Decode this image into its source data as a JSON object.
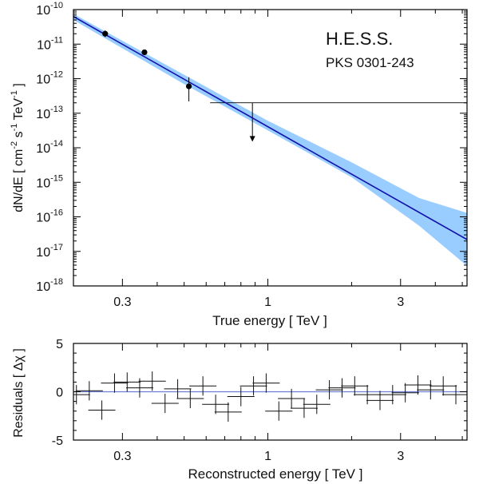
{
  "chart_data": [
    {
      "type": "line",
      "title": "H.E.S.S.",
      "subtitle": "PKS 0301-243",
      "xlabel": "True energy  [ TeV ]",
      "ylabel_main": "dN/dE  [ cm",
      "ylabel_sup1": "-2",
      "ylabel_mid": " s",
      "ylabel_sup2": "-1",
      "ylabel_tev": " TeV",
      "ylabel_sup3": "-1",
      "ylabel_end": " ]",
      "x_scale": "log",
      "y_scale": "log",
      "xlim": [
        0.2,
        5.2
      ],
      "ylim_exp": [
        -18,
        -10
      ],
      "x_ticks": [
        0.3,
        1,
        3
      ],
      "x_tick_labels": [
        "0.3",
        "1",
        "3"
      ],
      "y_tick_exponents": [
        -10,
        -11,
        -12,
        -13,
        -14,
        -15,
        -16,
        -17,
        -18
      ],
      "y_tick_base": "10",
      "fit_line": {
        "x": [
          0.2,
          5.2
        ],
        "y": [
          6.3e-11,
          2.2e-17
        ],
        "color": "#1010aa"
      },
      "confidence_band": {
        "x": [
          0.2,
          0.5,
          1.0,
          2.0,
          3.5,
          5.2
        ],
        "upper": [
          7.5e-11,
          1.3e-12,
          6e-14,
          3.8e-15,
          3.5e-16,
          1.3e-16
        ],
        "lower": [
          5e-11,
          7e-13,
          3.2e-14,
          1.4e-15,
          5.5e-17,
          3.8e-18
        ],
        "color": "#99ccff"
      },
      "points": [
        {
          "x": 0.26,
          "y": 2e-11,
          "yerr_lo": 1.6e-11,
          "yerr_hi": 2.5e-11
        },
        {
          "x": 0.36,
          "y": 5.8e-12,
          "yerr_lo": 5e-12,
          "yerr_hi": 6.8e-12
        },
        {
          "x": 0.52,
          "y": 6e-13,
          "yerr_lo": 2.2e-13,
          "yerr_hi": 1.1e-12
        }
      ],
      "upper_limit": {
        "x_lo": 0.62,
        "x_hi": 5.2,
        "x": 0.88,
        "y": 2e-13,
        "arrow_to": 1.5e-14
      }
    },
    {
      "type": "scatter",
      "xlabel": "Reconstructed energy  [ TeV ]",
      "ylabel": "Residuals  [ Δχ ]",
      "x_scale": "log",
      "xlim": [
        0.2,
        5.2
      ],
      "ylim": [
        -5,
        5
      ],
      "y_ticks": [
        5,
        0,
        -5
      ],
      "y_tick_labels": [
        "5",
        "0",
        "-5"
      ],
      "x_ticks": [
        0.3,
        1,
        3
      ],
      "x_tick_labels": [
        "0.3",
        "1",
        "3"
      ],
      "zero_line_color": "#6a7fd8",
      "residuals": {
        "x": [
          0.205,
          0.228,
          0.253,
          0.281,
          0.312,
          0.346,
          0.384,
          0.427,
          0.474,
          0.526,
          0.584,
          0.649,
          0.72,
          0.8,
          0.888,
          0.986,
          1.095,
          1.216,
          1.35,
          1.499,
          1.664,
          1.848,
          2.052,
          2.278,
          2.53,
          2.809,
          3.119,
          3.463,
          3.845,
          4.27,
          4.741
        ],
        "y": [
          -0.3,
          0.1,
          -1.9,
          0.9,
          1.0,
          0.4,
          1.1,
          -1.2,
          0.3,
          -0.7,
          0.6,
          -1.3,
          -2.1,
          -0.5,
          0.6,
          0.9,
          -2.0,
          -0.7,
          -1.7,
          -1.3,
          0.2,
          0.4,
          0.6,
          -0.3,
          -0.9,
          -0.3,
          -0.1,
          0.7,
          0.2,
          0.6,
          -0.3
        ]
      }
    }
  ]
}
